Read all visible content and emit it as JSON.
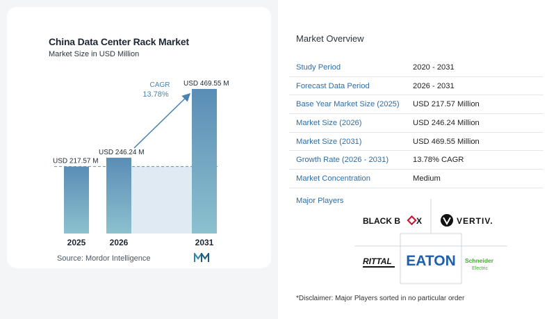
{
  "chart": {
    "title": "China Data Center Rack Market",
    "subtitle": "Market Size in USD Million",
    "source": "Source:  Mordor Intelligence",
    "cagr_label": "CAGR",
    "cagr_value": "13.78%"
  },
  "chart_data": {
    "type": "bar",
    "categories": [
      "2025",
      "2026",
      "2031"
    ],
    "values": [
      217.57,
      246.24,
      469.55
    ],
    "data_labels": [
      "USD 217.57 M",
      "USD 246.24 M",
      "USD 469.55 M"
    ],
    "title": "China Data Center Rack Market",
    "subtitle": "Market Size in USD Million",
    "xlabel": "",
    "ylabel": "",
    "ylim": [
      0,
      469.55
    ],
    "grid": false,
    "colors": {
      "bar_top": "#5a8db5",
      "bar_bottom": "#8cc1cf",
      "accent": "#4a83b0",
      "shade": "#dbe6f0"
    }
  },
  "overview": {
    "title": "Market Overview",
    "rows": [
      {
        "label": "Study Period",
        "value": "2020 - 2031"
      },
      {
        "label": "Forecast Data Period",
        "value": "2026 - 2031"
      },
      {
        "label": "Base Year Market Size (2025)",
        "value": "USD 217.57 Million"
      },
      {
        "label": "Market Size (2026)",
        "value": "USD 246.24 Million"
      },
      {
        "label": "Market Size (2031)",
        "value": "USD 469.55 Million"
      },
      {
        "label": "Growth Rate (2026 - 2031)",
        "value": "13.78% CAGR"
      },
      {
        "label": "Market Concentration",
        "value": "Medium"
      }
    ]
  },
  "players": {
    "title": "Major Players",
    "logos": [
      "BLACK BOX",
      "VERTIV",
      "RITTAL",
      "EATON",
      "Schneider Electric"
    ],
    "logo_text": {
      "blackbox_a": "BLACK B",
      "blackbox_b": "X",
      "vertiv": "VERTIV.",
      "rittal": "RITTAL",
      "eaton": "EATON",
      "schneider_a": "Schneider",
      "schneider_b": "Electric"
    }
  },
  "disclaimer": "*Disclaimer: Major Players sorted in no particular order"
}
